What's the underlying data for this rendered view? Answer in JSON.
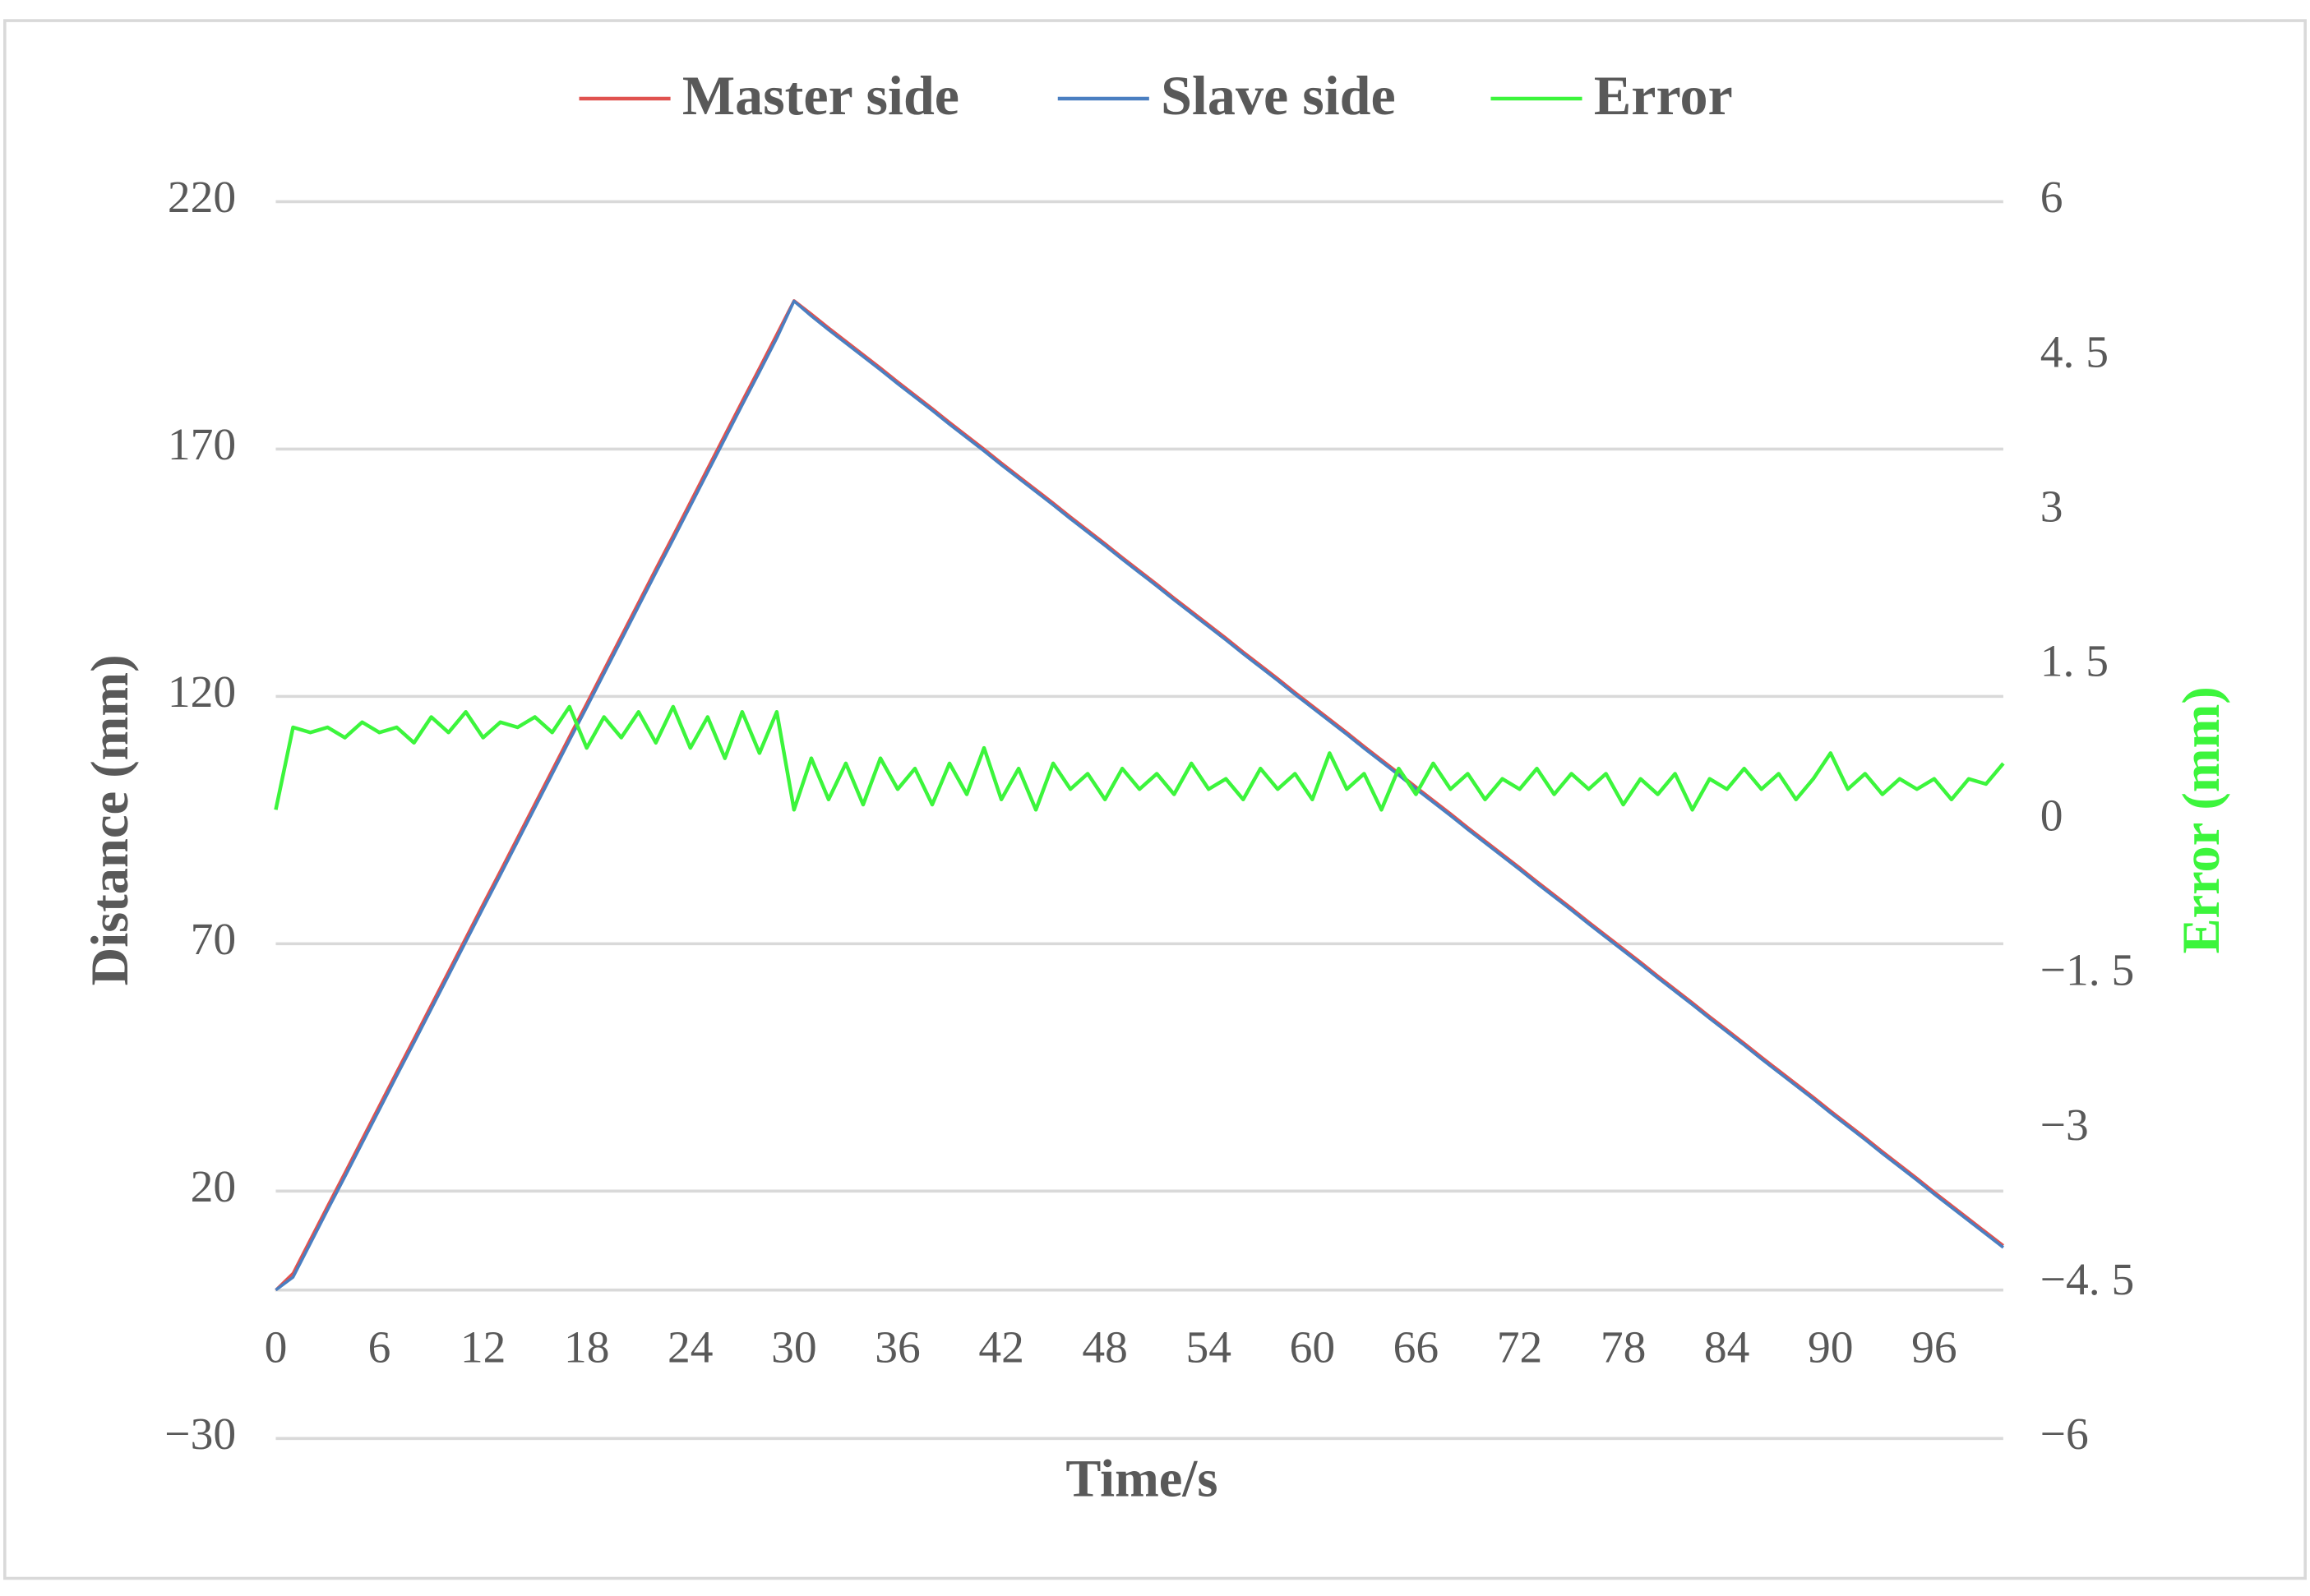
{
  "chart_data": {
    "type": "line",
    "legend": "top",
    "grid": true,
    "xlabel": "Time/s",
    "ylabel": "Distance (mm)",
    "y2label": "Error (mm)",
    "x": [
      0,
      1,
      2,
      3,
      4,
      5,
      6,
      7,
      8,
      9,
      10,
      11,
      12,
      13,
      14,
      15,
      16,
      17,
      18,
      19,
      20,
      21,
      22,
      23,
      24,
      25,
      26,
      27,
      28,
      29,
      30,
      31,
      32,
      33,
      34,
      35,
      36,
      37,
      38,
      39,
      40,
      41,
      42,
      43,
      44,
      45,
      46,
      47,
      48,
      49,
      50,
      51,
      52,
      53,
      54,
      55,
      56,
      57,
      58,
      59,
      60,
      61,
      62,
      63,
      64,
      65,
      66,
      67,
      68,
      69,
      70,
      71,
      72,
      73,
      74,
      75,
      76,
      77,
      78,
      79,
      80,
      81,
      82,
      83,
      84,
      85,
      86,
      87,
      88,
      89,
      90,
      91,
      92,
      93,
      94,
      95,
      96,
      97,
      98,
      99,
      100
    ],
    "xlim": [
      0,
      100
    ],
    "xticks": [
      0,
      6,
      12,
      18,
      24,
      30,
      36,
      42,
      48,
      54,
      60,
      66,
      72,
      78,
      84,
      90,
      96
    ],
    "ylim": [
      -30,
      220
    ],
    "yticks": [
      {
        "value": -30,
        "label": "−30"
      },
      20,
      70,
      120,
      170,
      220
    ],
    "y2lim": [
      -6,
      6
    ],
    "y2ticks": [
      {
        "value": -6,
        "label": "−6"
      },
      {
        "value": -4.5,
        "label": "−4. 5"
      },
      {
        "value": -3,
        "label": "−3"
      },
      {
        "value": -1.5,
        "label": "−1. 5"
      },
      0,
      {
        "value": 1.5,
        "label": "1. 5"
      },
      3,
      {
        "value": 4.5,
        "label": "4. 5"
      },
      6
    ],
    "series": [
      {
        "name": "Master side",
        "color": "#e0524f",
        "values": [
          0,
          3.4,
          10.2,
          17,
          23.7,
          30.5,
          37.3,
          44.1,
          50.8,
          57.6,
          64.4,
          71.2,
          78,
          84.7,
          91.5,
          98.3,
          105.1,
          111.9,
          118.6,
          125.4,
          132.2,
          139,
          145.8,
          152.5,
          159.3,
          166.1,
          172.9,
          179.7,
          186.4,
          193.2,
          200,
          197.3,
          194.5,
          191.8,
          189.1,
          186.4,
          183.6,
          180.9,
          178.2,
          175.4,
          172.7,
          170,
          167.2,
          164.5,
          161.8,
          159.1,
          156.3,
          153.6,
          150.9,
          148.1,
          145.4,
          142.7,
          139.9,
          137.2,
          134.5,
          131.8,
          129,
          126.3,
          123.6,
          120.8,
          118.1,
          115.4,
          112.7,
          109.9,
          107.2,
          104.5,
          101.7,
          99,
          96.3,
          93.5,
          90.8,
          88.1,
          85.4,
          82.6,
          79.9,
          77.2,
          74.4,
          71.7,
          69,
          66.3,
          63.5,
          60.8,
          58.1,
          55.3,
          52.6,
          49.9,
          47.1,
          44.4,
          41.7,
          39,
          36.2,
          33.5,
          30.8,
          28,
          25.3,
          22.6,
          19.8,
          17.1,
          14.4,
          11.7,
          9
        ]
      },
      {
        "name": "Slave side",
        "color": "#4a7fc1",
        "values": [
          0,
          2.6,
          9.4,
          16.2,
          22.9,
          29.7,
          36.5,
          43.3,
          50,
          56.8,
          63.6,
          70.4,
          77.2,
          83.9,
          90.7,
          97.5,
          104.3,
          111.1,
          117.8,
          124.6,
          131.4,
          138.2,
          145,
          151.7,
          158.5,
          165.3,
          172.1,
          178.9,
          185.6,
          192.4,
          199.9,
          196.9,
          194.1,
          191.4,
          188.7,
          186,
          183.2,
          180.5,
          177.8,
          175,
          172.3,
          169.6,
          166.8,
          164.1,
          161.4,
          158.7,
          155.9,
          153.2,
          150.5,
          147.7,
          145,
          142.3,
          139.5,
          136.8,
          134.1,
          131.4,
          128.6,
          125.9,
          123.2,
          120.4,
          117.7,
          115,
          112.3,
          109.5,
          106.8,
          104.1,
          101.3,
          98.6,
          95.9,
          93.1,
          90.4,
          87.7,
          85,
          82.2,
          79.5,
          76.8,
          74,
          71.3,
          68.6,
          65.9,
          63.1,
          60.4,
          57.7,
          54.9,
          52.2,
          49.5,
          46.7,
          44,
          41.3,
          38.6,
          35.8,
          33.1,
          30.4,
          27.6,
          24.9,
          22.2,
          19.4,
          16.7,
          14,
          11.3,
          8.6
        ]
      },
      {
        "name": "Error",
        "color": "#3cf53c",
        "axis": "y2",
        "values": [
          0.1,
          0.9,
          0.85,
          0.9,
          0.8,
          0.95,
          0.85,
          0.9,
          0.75,
          1.0,
          0.85,
          1.05,
          0.8,
          0.95,
          0.9,
          1.0,
          0.85,
          1.1,
          0.7,
          1.0,
          0.8,
          1.05,
          0.75,
          1.1,
          0.7,
          1.0,
          0.6,
          1.05,
          0.65,
          1.05,
          0.1,
          0.6,
          0.2,
          0.55,
          0.15,
          0.6,
          0.3,
          0.5,
          0.15,
          0.55,
          0.25,
          0.7,
          0.2,
          0.5,
          0.1,
          0.55,
          0.3,
          0.45,
          0.2,
          0.5,
          0.3,
          0.45,
          0.25,
          0.55,
          0.3,
          0.4,
          0.2,
          0.5,
          0.3,
          0.45,
          0.2,
          0.65,
          0.3,
          0.45,
          0.1,
          0.5,
          0.25,
          0.55,
          0.3,
          0.45,
          0.2,
          0.4,
          0.3,
          0.5,
          0.25,
          0.45,
          0.3,
          0.45,
          0.15,
          0.4,
          0.25,
          0.45,
          0.1,
          0.4,
          0.3,
          0.5,
          0.3,
          0.45,
          0.2,
          0.4,
          0.65,
          0.3,
          0.45,
          0.25,
          0.4,
          0.3,
          0.4,
          0.2,
          0.4,
          0.35,
          0.55
        ]
      }
    ]
  }
}
